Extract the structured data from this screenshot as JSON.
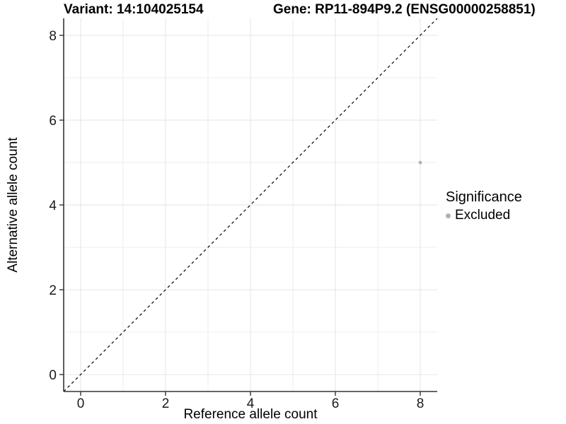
{
  "figure": {
    "title_left": "Variant: 14:104025154",
    "title_right": "Gene: RP11-894P9.2 (ENSG00000258851)"
  },
  "chart_data": {
    "type": "scatter",
    "title_left": "Variant: 14:104025154",
    "title_right": "Gene: RP11-894P9.2 (ENSG00000258851)",
    "xlabel": "Reference allele count",
    "ylabel": "Alternative allele count",
    "xlim": [
      -0.4,
      8.4
    ],
    "ylim": [
      -0.4,
      8.4
    ],
    "x_ticks": [
      0,
      2,
      4,
      6,
      8
    ],
    "y_ticks": [
      0,
      2,
      4,
      6,
      8
    ],
    "minor_breaks": [
      1,
      3,
      5,
      7
    ],
    "grid": true,
    "legend_position": "right",
    "points": [
      {
        "x": 8,
        "y": 5,
        "series": "Excluded"
      }
    ],
    "reference_line": {
      "slope": 1,
      "intercept": 0,
      "style": "dashed"
    },
    "legend": {
      "title": "Significance",
      "items": [
        {
          "label": "Excluded",
          "color": "#b1b1b1"
        }
      ]
    }
  },
  "colors": {
    "background": "#ffffff",
    "point": "#b1b1b1",
    "axis_line": "#333333",
    "tick_mark": "#333333",
    "grid_major": "#e4e4e4",
    "grid_minor": "#eeeeee",
    "dashed_line": "#000000",
    "text": "#000000"
  }
}
